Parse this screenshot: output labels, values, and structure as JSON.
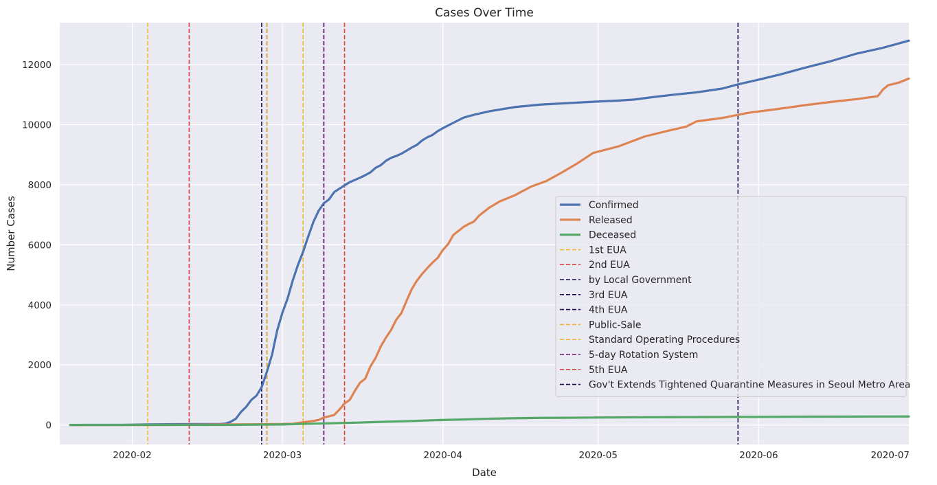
{
  "chart_data": {
    "type": "line",
    "title": "Cases Over Time",
    "xlabel": "Date",
    "ylabel": "Number Cases",
    "xlim": [
      "2020-01-18",
      "2020-06-30"
    ],
    "ylim": [
      -650,
      13400
    ],
    "x_ticks": [
      "2020-02",
      "2020-03",
      "2020-04",
      "2020-05",
      "2020-06",
      "2020-07"
    ],
    "y_ticks": [
      0,
      2000,
      4000,
      6000,
      8000,
      10000,
      12000
    ],
    "grid": true,
    "legend_position": "right",
    "series": [
      {
        "name": "Confirmed",
        "color": "#4c72b0",
        "points": [
          [
            "2020-01-20",
            1
          ],
          [
            "2020-01-25",
            2
          ],
          [
            "2020-01-30",
            4
          ],
          [
            "2020-02-04",
            16
          ],
          [
            "2020-02-09",
            25
          ],
          [
            "2020-02-14",
            28
          ],
          [
            "2020-02-18",
            31
          ],
          [
            "2020-02-19",
            46
          ],
          [
            "2020-02-20",
            104
          ],
          [
            "2020-02-21",
            204
          ],
          [
            "2020-02-22",
            433
          ],
          [
            "2020-02-23",
            602
          ],
          [
            "2020-02-24",
            833
          ],
          [
            "2020-02-25",
            977
          ],
          [
            "2020-02-26",
            1261
          ],
          [
            "2020-02-27",
            1766
          ],
          [
            "2020-02-28",
            2337
          ],
          [
            "2020-02-29",
            3150
          ],
          [
            "2020-03-01",
            3736
          ],
          [
            "2020-03-02",
            4212
          ],
          [
            "2020-03-03",
            4812
          ],
          [
            "2020-03-04",
            5328
          ],
          [
            "2020-03-05",
            5766
          ],
          [
            "2020-03-06",
            6284
          ],
          [
            "2020-03-07",
            6767
          ],
          [
            "2020-03-08",
            7134
          ],
          [
            "2020-03-09",
            7382
          ],
          [
            "2020-03-10",
            7513
          ],
          [
            "2020-03-11",
            7755
          ],
          [
            "2020-03-12",
            7869
          ],
          [
            "2020-03-13",
            7979
          ],
          [
            "2020-03-14",
            8086
          ],
          [
            "2020-03-15",
            8162
          ],
          [
            "2020-03-16",
            8236
          ],
          [
            "2020-03-17",
            8320
          ],
          [
            "2020-03-18",
            8413
          ],
          [
            "2020-03-19",
            8565
          ],
          [
            "2020-03-20",
            8652
          ],
          [
            "2020-03-21",
            8799
          ],
          [
            "2020-03-22",
            8897
          ],
          [
            "2020-03-23",
            8961
          ],
          [
            "2020-03-24",
            9037
          ],
          [
            "2020-03-25",
            9137
          ],
          [
            "2020-03-26",
            9241
          ],
          [
            "2020-03-27",
            9332
          ],
          [
            "2020-03-28",
            9478
          ],
          [
            "2020-03-29",
            9583
          ],
          [
            "2020-03-30",
            9661
          ],
          [
            "2020-03-31",
            9786
          ],
          [
            "2020-04-01",
            9887
          ],
          [
            "2020-04-03",
            10062
          ],
          [
            "2020-04-05",
            10237
          ],
          [
            "2020-04-07",
            10331
          ],
          [
            "2020-04-10",
            10450
          ],
          [
            "2020-04-15",
            10591
          ],
          [
            "2020-04-20",
            10674
          ],
          [
            "2020-04-25",
            10718
          ],
          [
            "2020-04-30",
            10765
          ],
          [
            "2020-05-05",
            10806
          ],
          [
            "2020-05-08",
            10840
          ],
          [
            "2020-05-11",
            10909
          ],
          [
            "2020-05-15",
            10991
          ],
          [
            "2020-05-20",
            11078
          ],
          [
            "2020-05-25",
            11206
          ],
          [
            "2020-05-28",
            11344
          ],
          [
            "2020-06-01",
            11503
          ],
          [
            "2020-06-05",
            11668
          ],
          [
            "2020-06-10",
            11902
          ],
          [
            "2020-06-15",
            12121
          ],
          [
            "2020-06-20",
            12373
          ],
          [
            "2020-06-25",
            12563
          ],
          [
            "2020-06-30",
            12800
          ]
        ]
      },
      {
        "name": "Released",
        "color": "#dd8452",
        "points": [
          [
            "2020-01-20",
            0
          ],
          [
            "2020-01-30",
            0
          ],
          [
            "2020-02-10",
            3
          ],
          [
            "2020-02-20",
            16
          ],
          [
            "2020-02-25",
            22
          ],
          [
            "2020-03-01",
            30
          ],
          [
            "2020-03-03",
            41
          ],
          [
            "2020-03-05",
            88
          ],
          [
            "2020-03-07",
            135
          ],
          [
            "2020-03-08",
            166
          ],
          [
            "2020-03-09",
            247
          ],
          [
            "2020-03-10",
            288
          ],
          [
            "2020-03-11",
            333
          ],
          [
            "2020-03-12",
            510
          ],
          [
            "2020-03-13",
            714
          ],
          [
            "2020-03-14",
            834
          ],
          [
            "2020-03-15",
            1137
          ],
          [
            "2020-03-16",
            1407
          ],
          [
            "2020-03-17",
            1540
          ],
          [
            "2020-03-18",
            1947
          ],
          [
            "2020-03-19",
            2233
          ],
          [
            "2020-03-20",
            2612
          ],
          [
            "2020-03-21",
            2909
          ],
          [
            "2020-03-22",
            3166
          ],
          [
            "2020-03-23",
            3507
          ],
          [
            "2020-03-24",
            3730
          ],
          [
            "2020-03-25",
            4144
          ],
          [
            "2020-03-26",
            4528
          ],
          [
            "2020-03-27",
            4811
          ],
          [
            "2020-03-28",
            5033
          ],
          [
            "2020-03-29",
            5228
          ],
          [
            "2020-03-30",
            5408
          ],
          [
            "2020-03-31",
            5567
          ],
          [
            "2020-04-01",
            5828
          ],
          [
            "2020-04-02",
            6021
          ],
          [
            "2020-04-03",
            6325
          ],
          [
            "2020-04-04",
            6463
          ],
          [
            "2020-04-05",
            6598
          ],
          [
            "2020-04-06",
            6694
          ],
          [
            "2020-04-07",
            6776
          ],
          [
            "2020-04-08",
            6973
          ],
          [
            "2020-04-10",
            7243
          ],
          [
            "2020-04-12",
            7447
          ],
          [
            "2020-04-15",
            7660
          ],
          [
            "2020-04-18",
            7937
          ],
          [
            "2020-04-21",
            8127
          ],
          [
            "2020-04-24",
            8411
          ],
          [
            "2020-04-27",
            8717
          ],
          [
            "2020-04-30",
            9059
          ],
          [
            "2020-05-05",
            9283
          ],
          [
            "2020-05-10",
            9610
          ],
          [
            "2020-05-15",
            9821
          ],
          [
            "2020-05-18",
            9938
          ],
          [
            "2020-05-20",
            10113
          ],
          [
            "2020-05-25",
            10226
          ],
          [
            "2020-05-30",
            10398
          ],
          [
            "2020-06-05",
            10531
          ],
          [
            "2020-06-10",
            10654
          ],
          [
            "2020-06-15",
            10760
          ],
          [
            "2020-06-20",
            10856
          ],
          [
            "2020-06-24",
            10950
          ],
          [
            "2020-06-25",
            11172
          ],
          [
            "2020-06-26",
            11317
          ],
          [
            "2020-06-28",
            11398
          ],
          [
            "2020-06-30",
            11537
          ]
        ]
      },
      {
        "name": "Deceased",
        "color": "#55a868",
        "points": [
          [
            "2020-01-20",
            0
          ],
          [
            "2020-02-20",
            1
          ],
          [
            "2020-02-25",
            10
          ],
          [
            "2020-03-01",
            17
          ],
          [
            "2020-03-05",
            35
          ],
          [
            "2020-03-10",
            54
          ],
          [
            "2020-03-15",
            75
          ],
          [
            "2020-03-20",
            102
          ],
          [
            "2020-03-25",
            126
          ],
          [
            "2020-03-31",
            162
          ],
          [
            "2020-04-05",
            183
          ],
          [
            "2020-04-10",
            208
          ],
          [
            "2020-04-15",
            225
          ],
          [
            "2020-04-20",
            236
          ],
          [
            "2020-04-25",
            240
          ],
          [
            "2020-04-30",
            247
          ],
          [
            "2020-05-10",
            256
          ],
          [
            "2020-05-20",
            263
          ],
          [
            "2020-05-31",
            270
          ],
          [
            "2020-06-10",
            276
          ],
          [
            "2020-06-20",
            280
          ],
          [
            "2020-06-30",
            282
          ]
        ]
      }
    ],
    "vlines": [
      {
        "name": "1st EUA",
        "date": "2020-02-04",
        "color": "#f0b530"
      },
      {
        "name": "2nd EUA",
        "date": "2020-02-12",
        "color": "#e0423a"
      },
      {
        "name": "by Local Government",
        "date": "2020-02-26",
        "color": "#1b0b4e"
      },
      {
        "name": "3rd EUA",
        "date": "2020-02-27",
        "color": "#1b0b4e"
      },
      {
        "name": "4th EUA",
        "date": "2020-03-09",
        "color": "#1b0b4e"
      },
      {
        "name": "Public-Sale",
        "date": "2020-02-27",
        "color": "#f0b530"
      },
      {
        "name": "Standard Operating Procedures",
        "date": "2020-03-05",
        "color": "#f0b530"
      },
      {
        "name": "5-day Rotation System",
        "date": "2020-03-09",
        "color": "#6a1b6e"
      },
      {
        "name": "5th EUA",
        "date": "2020-03-13",
        "color": "#e0423a"
      },
      {
        "name": "Gov't Extends Tightened Quarantine Measures in Seoul Metro Area",
        "date": "2020-05-28",
        "color": "#1b0b4e"
      }
    ]
  }
}
